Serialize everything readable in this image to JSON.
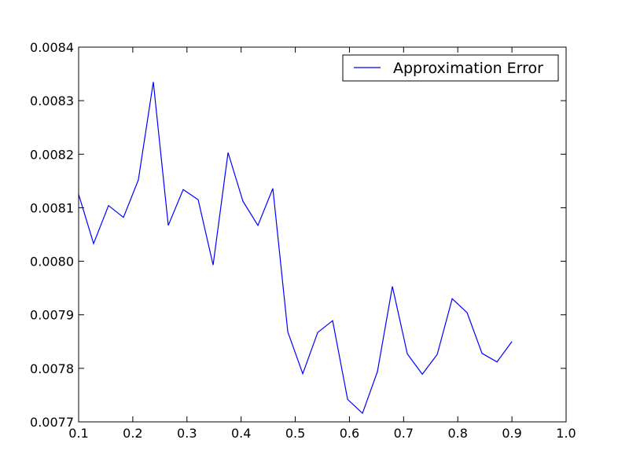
{
  "chart_data": {
    "type": "line",
    "title": "",
    "xlabel": "",
    "ylabel": "",
    "xlim": [
      0.1,
      1.0
    ],
    "ylim": [
      0.0077,
      0.0084
    ],
    "x_ticks": [
      "0.1",
      "0.2",
      "0.3",
      "0.4",
      "0.5",
      "0.6",
      "0.7",
      "0.8",
      "0.9",
      "1.0"
    ],
    "y_ticks": [
      "0.0077",
      "0.0078",
      "0.0079",
      "0.0080",
      "0.0081",
      "0.0082",
      "0.0083",
      "0.0084"
    ],
    "grid": false,
    "legend_position": "top-right",
    "series": [
      {
        "name": "Approximation Error",
        "color": "#0000ff",
        "x": [
          0.1,
          0.1276,
          0.1552,
          0.1828,
          0.2103,
          0.2379,
          0.2655,
          0.2931,
          0.3207,
          0.3483,
          0.3759,
          0.4034,
          0.431,
          0.4586,
          0.4862,
          0.5138,
          0.5414,
          0.569,
          0.5966,
          0.6241,
          0.6517,
          0.6793,
          0.7069,
          0.7345,
          0.7621,
          0.7897,
          0.8172,
          0.8448,
          0.8724,
          0.9
        ],
        "y": [
          0.008125,
          0.008033,
          0.008104,
          0.008082,
          0.008152,
          0.008335,
          0.008067,
          0.008134,
          0.008115,
          0.007993,
          0.008203,
          0.008112,
          0.008067,
          0.008136,
          0.007868,
          0.00779,
          0.007867,
          0.007889,
          0.007742,
          0.007716,
          0.007794,
          0.007953,
          0.007827,
          0.007789,
          0.007826,
          0.00793,
          0.007904,
          0.007828,
          0.007812,
          0.00785
        ]
      }
    ]
  }
}
